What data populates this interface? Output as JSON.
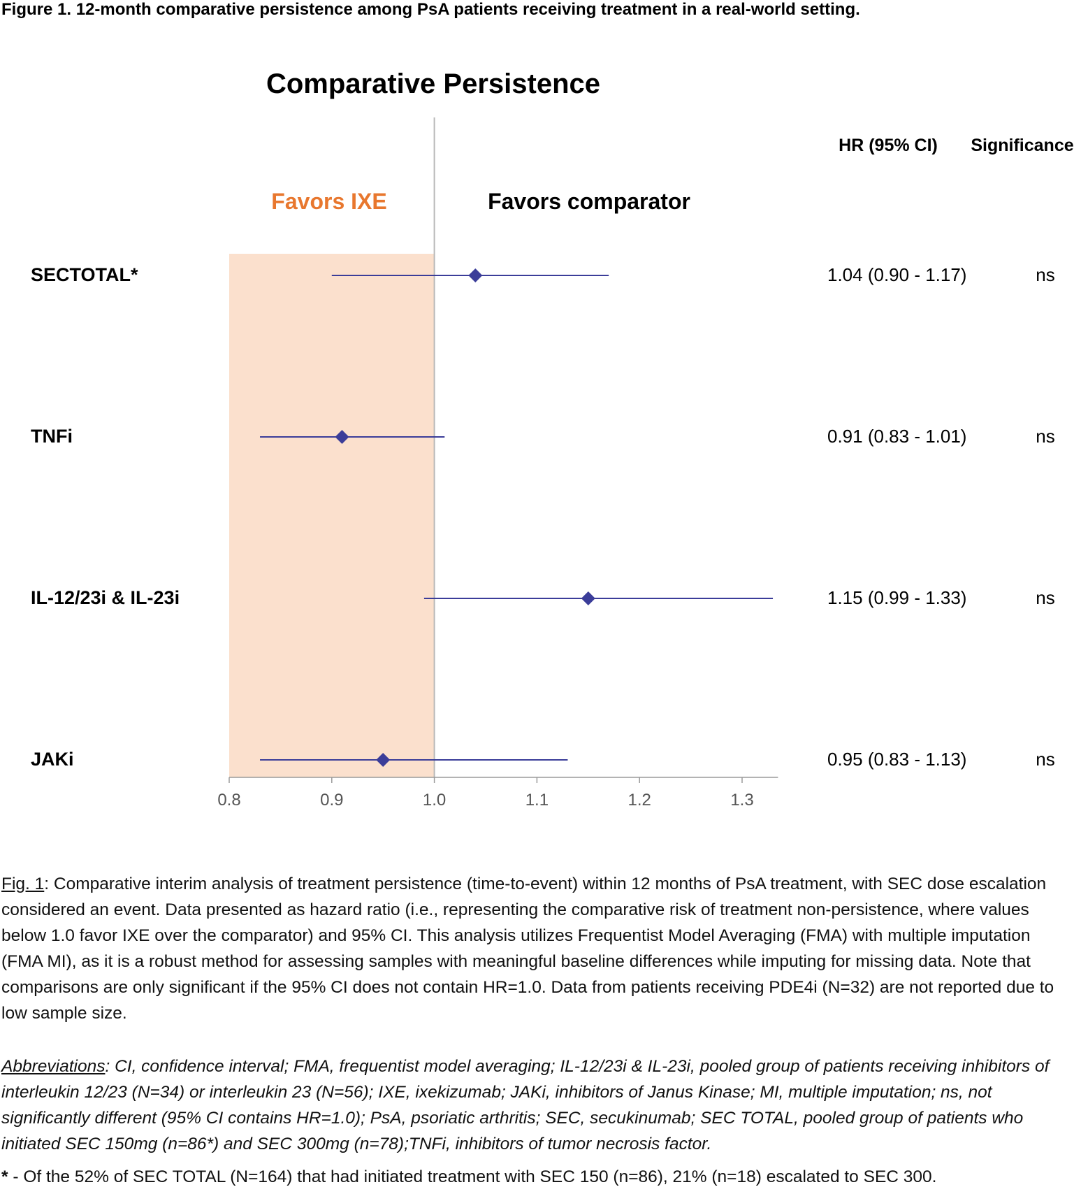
{
  "figure_title": "Figure 1. 12-month comparative persistence among PsA patients receiving treatment in a real-world setting.",
  "chart_data": {
    "type": "forest",
    "title": "Comparative Persistence",
    "favors_left": "Favors IXE",
    "favors_right": "Favors comparator",
    "col_hr_header": "HR (95% CI)",
    "col_sig_header": "Significance",
    "x_ticks": [
      0.8,
      0.9,
      1.0,
      1.1,
      1.2,
      1.3
    ],
    "x_tick_labels": [
      "0.8",
      "0.9",
      "1.0",
      "1.1",
      "1.2",
      "1.3"
    ],
    "xlim": [
      0.8,
      1.335
    ],
    "reference_line": 1.0,
    "shaded_region": [
      0.8,
      1.0
    ],
    "rows": [
      {
        "label": "SECTOTAL*",
        "hr": 1.04,
        "lo": 0.9,
        "hi": 1.17,
        "hr_text": "1.04 (0.90 - 1.17)",
        "sig": "ns"
      },
      {
        "label": "TNFi",
        "hr": 0.91,
        "lo": 0.83,
        "hi": 1.01,
        "hr_text": "0.91 (0.83 - 1.01)",
        "sig": "ns"
      },
      {
        "label": "IL-12/23i & IL-23i",
        "hr": 1.15,
        "lo": 0.99,
        "hi": 1.33,
        "hr_text": "1.15 (0.99 - 1.33)",
        "sig": "ns"
      },
      {
        "label": "JAKi",
        "hr": 0.95,
        "lo": 0.83,
        "hi": 1.13,
        "hr_text": "0.95 (0.83 - 1.13)",
        "sig": "ns"
      }
    ],
    "colors": {
      "marker": "#3b3d99",
      "line": "#3b3d99",
      "shade": "#fbe0cd",
      "reference": "#b8b8b8",
      "favors_left": "#e8772e",
      "axis": "#9a9a9a"
    }
  },
  "caption": {
    "fig_label": "Fig. 1",
    "text": ": Comparative interim analysis of treatment persistence (time-to-event) within 12 months of PsA treatment, with SEC dose escalation considered an event. Data presented as hazard ratio (i.e., representing the comparative risk of treatment non-persistence, where values below 1.0 favor IXE over the comparator) and 95% CI. This analysis utilizes Frequentist Model Averaging (FMA) with multiple imputation (FMA MI), as it is a robust method for assessing samples with meaningful baseline differences while imputing for missing data. Note that comparisons are only significant if the 95% CI does not contain HR=1.0. Data from patients receiving PDE4i (N=32) are not reported due to low sample size."
  },
  "abbreviations": {
    "label": "Abbreviations",
    "text": ": CI, confidence interval; FMA, frequentist model averaging; IL-12/23i & IL-23i, pooled group of patients receiving inhibitors of interleukin 12/23 (N=34) or interleukin 23 (N=56); IXE, ixekizumab; JAKi, inhibitors of Janus Kinase; MI, multiple imputation; ns, not significantly different (95% CI contains HR=1.0); PsA, psoriatic arthritis; SEC, secukinumab; SEC TOTAL, pooled group of patients who initiated SEC 150mg (n=86*) and SEC 300mg (n=78);TNFi, inhibitors of tumor necrosis factor."
  },
  "footnote": {
    "marker": "*",
    "text": " - Of the 52% of SEC TOTAL (N=164) that had initiated treatment with SEC 150 (n=86), 21% (n=18) escalated to SEC 300."
  }
}
